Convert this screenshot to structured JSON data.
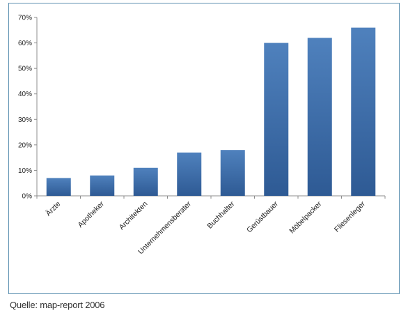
{
  "chart_data": {
    "type": "bar",
    "categories": [
      "Ärzte",
      "Apotheker",
      "Architekten",
      "Unternehmensberater",
      "Buchhalter",
      "Gerüstbauer",
      "Möbelpacker",
      "Fliesenleger"
    ],
    "values": [
      7,
      8,
      11,
      17,
      18,
      60,
      62,
      66
    ],
    "ylim": [
      0,
      70
    ],
    "yticks": [
      "0%",
      "10%",
      "20%",
      "30%",
      "40%",
      "50%",
      "60%",
      "70%"
    ],
    "grid": false,
    "bar_color_top": "#4f81bd",
    "bar_color_bottom": "#2e5a94"
  },
  "source": "Quelle: map-report 2006"
}
